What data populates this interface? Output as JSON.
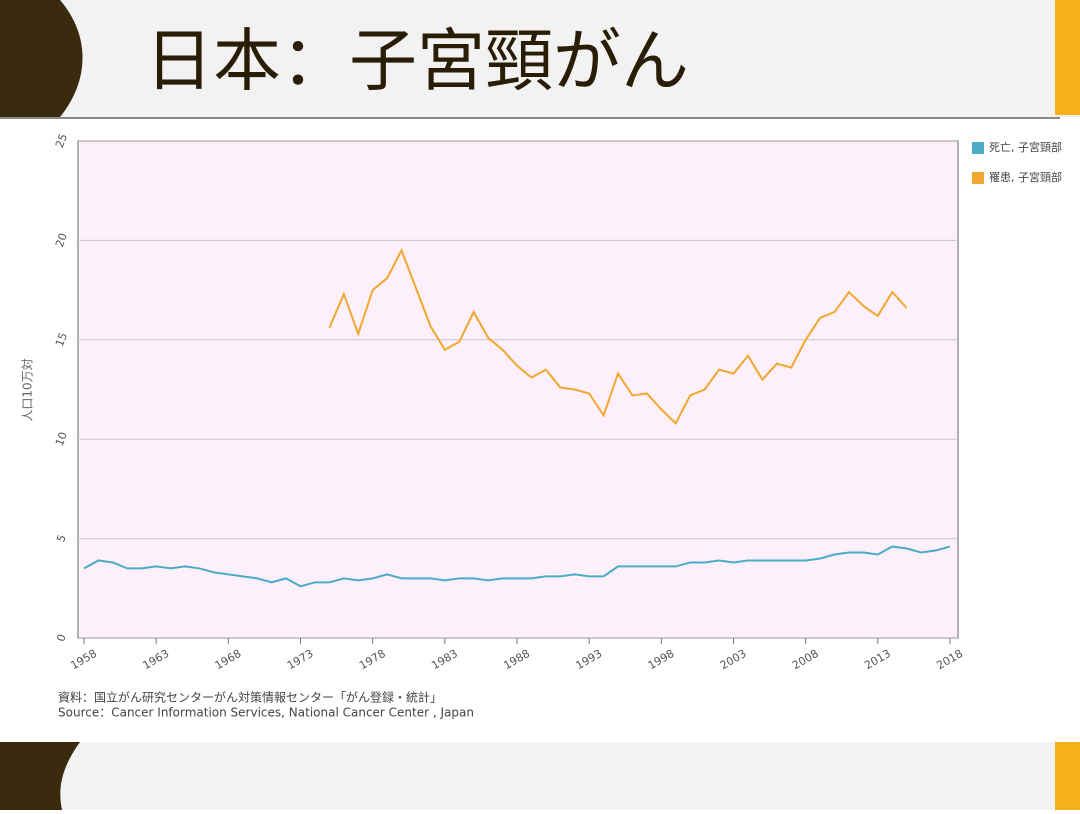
{
  "header": {
    "title": "日本：子宮頸がん"
  },
  "chart_data": {
    "type": "line",
    "y_label": "人口10万対",
    "x": [
      1958,
      1959,
      1960,
      1961,
      1962,
      1963,
      1964,
      1965,
      1966,
      1967,
      1968,
      1969,
      1970,
      1971,
      1972,
      1973,
      1974,
      1975,
      1976,
      1977,
      1978,
      1979,
      1980,
      1981,
      1982,
      1983,
      1984,
      1985,
      1986,
      1987,
      1988,
      1989,
      1990,
      1991,
      1992,
      1993,
      1994,
      1995,
      1996,
      1997,
      1998,
      1999,
      2000,
      2001,
      2002,
      2003,
      2004,
      2005,
      2006,
      2007,
      2008,
      2009,
      2010,
      2011,
      2012,
      2013,
      2014,
      2015,
      2016,
      2017,
      2018
    ],
    "series": [
      {
        "name": "死亡, 子宮頸部",
        "color": "#4bacc6",
        "values": [
          3.5,
          3.9,
          3.8,
          3.5,
          3.5,
          3.6,
          3.5,
          3.6,
          3.5,
          3.3,
          3.2,
          3.1,
          3.0,
          2.8,
          3.0,
          2.6,
          2.8,
          2.8,
          3.0,
          2.9,
          3.0,
          3.2,
          3.0,
          3.0,
          3.0,
          2.9,
          3.0,
          3.0,
          2.9,
          3.0,
          3.0,
          3.0,
          3.1,
          3.1,
          3.2,
          3.1,
          3.1,
          3.6,
          3.6,
          3.6,
          3.6,
          3.6,
          3.8,
          3.8,
          3.9,
          3.8,
          3.9,
          3.9,
          3.9,
          3.9,
          3.9,
          4.0,
          4.2,
          4.3,
          4.3,
          4.2,
          4.6,
          4.5,
          4.3,
          4.4,
          4.6
        ]
      },
      {
        "name": "罹患, 子宮頸部",
        "color": "#f0a830",
        "values": [
          null,
          null,
          null,
          null,
          null,
          null,
          null,
          null,
          null,
          null,
          null,
          null,
          null,
          null,
          null,
          null,
          null,
          15.6,
          17.3,
          15.3,
          17.5,
          18.1,
          19.5,
          17.6,
          15.7,
          14.5,
          14.9,
          16.4,
          15.1,
          14.5,
          13.7,
          13.1,
          13.5,
          12.6,
          12.5,
          12.3,
          11.2,
          13.3,
          12.2,
          12.3,
          11.5,
          10.8,
          12.2,
          12.5,
          13.5,
          13.3,
          14.2,
          13.0,
          13.8,
          13.6,
          15.0,
          16.1,
          16.4,
          17.4,
          16.7,
          16.2,
          17.4,
          16.6,
          null,
          null,
          null
        ]
      }
    ],
    "xlim": [
      1958,
      2018
    ],
    "xticks": [
      1958,
      1963,
      1968,
      1973,
      1978,
      1983,
      1988,
      1993,
      1998,
      2003,
      2008,
      2013,
      2018
    ],
    "ylim": [
      0,
      25
    ],
    "yticks": [
      0,
      5,
      10,
      15,
      20,
      25
    ],
    "grid": true,
    "legend": "right",
    "source": [
      "資料：国立がん研究センターがん対策情報センター「がん登録・統計」",
      "Source：Cancer Information Services, National Cancer Center , Japan"
    ]
  }
}
